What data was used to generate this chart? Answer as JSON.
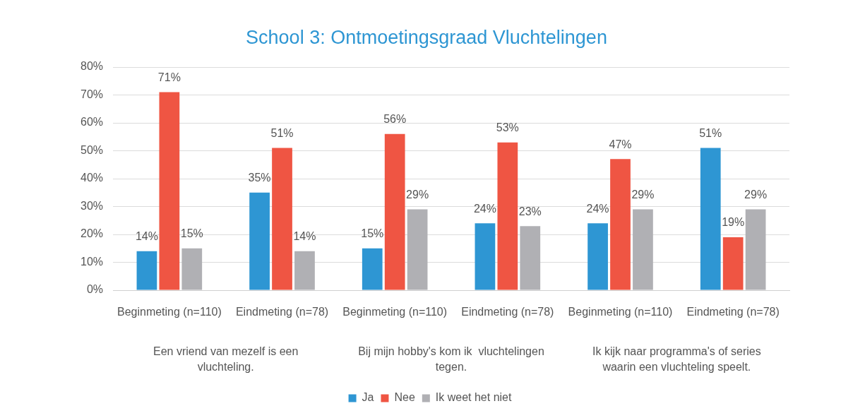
{
  "chart_data": {
    "type": "bar",
    "title": "School 3: Ontmoetingsgraad Vluchtelingen",
    "categories": [
      "Beginmeting (n=110)",
      "Eindmeting (n=78)",
      "Beginmeting (n=110)",
      "Eindmeting (n=78)",
      "Beginmeting (n=110)",
      "Eindmeting (n=78)"
    ],
    "series": [
      {
        "name": "Ja",
        "color": "#2e96d3",
        "values": [
          14,
          35,
          15,
          24,
          24,
          51
        ],
        "value_labels": [
          "14%",
          "35%",
          "15%",
          "24%",
          "24%",
          "51%"
        ]
      },
      {
        "name": "Nee",
        "color": "#ef5543",
        "values": [
          71,
          51,
          56,
          53,
          47,
          19
        ],
        "value_labels": [
          "71%",
          "51%",
          "56%",
          "53%",
          "47%",
          "19%"
        ]
      },
      {
        "name": "Ik weet het niet",
        "color": "#b0b0b4",
        "values": [
          15,
          14,
          29,
          23,
          29,
          29
        ],
        "value_labels": [
          "15%",
          "14%",
          "29%",
          "23%",
          "29%",
          "29%"
        ]
      }
    ],
    "ylim": [
      0,
      80
    ],
    "yticks": [
      {
        "value": 0,
        "label": "0%"
      },
      {
        "value": 10,
        "label": "10%"
      },
      {
        "value": 20,
        "label": "20%"
      },
      {
        "value": 30,
        "label": "30%"
      },
      {
        "value": 40,
        "label": "40%"
      },
      {
        "value": 50,
        "label": "50%"
      },
      {
        "value": 60,
        "label": "60%"
      },
      {
        "value": 70,
        "label": "70%"
      },
      {
        "value": 80,
        "label": "80%"
      }
    ],
    "annotations": [
      "Een vriend van mezelf is een vluchteling.",
      "Bij mijn hobby's kom ik  vluchtelingen tegen.",
      "Ik kijk naar programma's of series waarin een vluchteling speelt."
    ],
    "grid": "y",
    "legend": "bottom"
  }
}
